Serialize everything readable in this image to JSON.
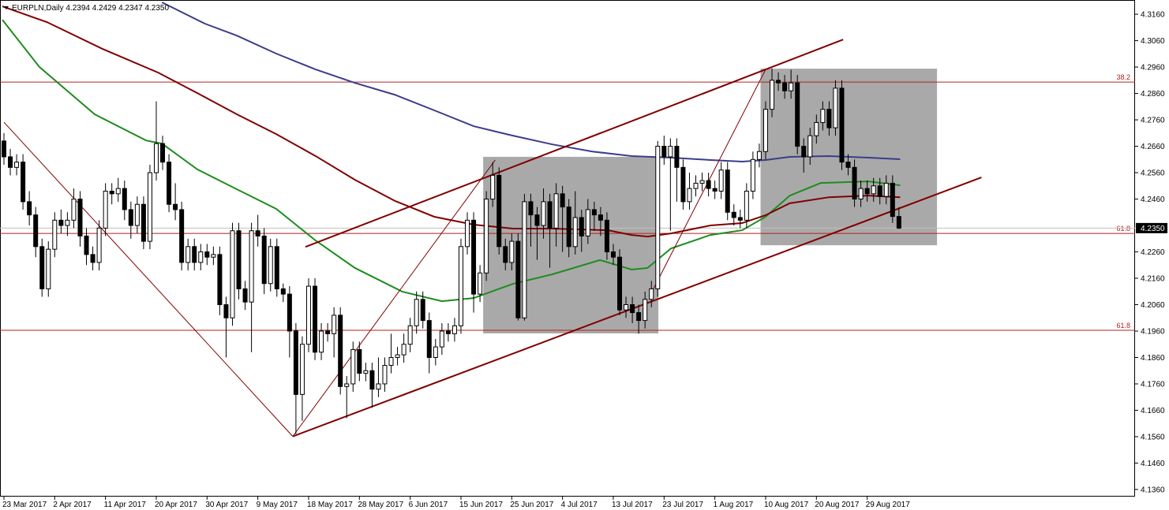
{
  "chart_data": {
    "type": "candlestick",
    "title": "EURPLN,Daily  4.2394 4.2429 4.2347 4.2350",
    "open": [
      4.268,
      4.262,
      4.258,
      4.26,
      4.245,
      4.24,
      4.228,
      4.212,
      4.227,
      4.238,
      4.236,
      4.238,
      4.246,
      4.232,
      4.225,
      4.222,
      4.235,
      4.249,
      4.248,
      4.25,
      4.242,
      4.236,
      4.244,
      4.23,
      4.256,
      4.267,
      4.26,
      4.244,
      4.242,
      4.222,
      4.228,
      4.222,
      4.226,
      4.224,
      4.225,
      4.206,
      4.201,
      4.234,
      4.212,
      4.207,
      4.234,
      4.232,
      4.214,
      4.228,
      4.212,
      4.21,
      4.196,
      4.172,
      4.191,
      4.213,
      4.188,
      4.196,
      4.195,
      4.202,
      4.175,
      4.176,
      4.189,
      4.18,
      4.181,
      4.174,
      4.176,
      4.183,
      4.186,
      4.187,
      4.191,
      4.198,
      4.208,
      4.2,
      4.186,
      4.19,
      4.196,
      4.195,
      4.198,
      4.228,
      4.238,
      4.21,
      4.218,
      4.246,
      4.255,
      4.228,
      4.222,
      4.23,
      4.201,
      4.245,
      4.24,
      4.236,
      4.245,
      4.235,
      4.248,
      4.243,
      4.228,
      4.239,
      4.232,
      4.242,
      4.24,
      4.238,
      4.226,
      4.224,
      4.204,
      4.206,
      4.203,
      4.2,
      4.208,
      4.212,
      4.266,
      4.262,
      4.266,
      4.258,
      4.245,
      4.25,
      4.252,
      4.253,
      4.25,
      4.249,
      4.257,
      4.241,
      4.239,
      4.238,
      4.249,
      4.261,
      4.264,
      4.28,
      4.291,
      4.29,
      4.287,
      4.29,
      4.266,
      4.262,
      4.27,
      4.275,
      4.28,
      4.273,
      4.288,
      4.26,
      4.258,
      4.246,
      4.25,
      4.248,
      4.251,
      4.247,
      4.252,
      4.2394
    ],
    "high": [
      4.271,
      4.265,
      4.263,
      4.263,
      4.249,
      4.243,
      4.231,
      4.23,
      4.241,
      4.242,
      4.241,
      4.25,
      4.249,
      4.235,
      4.228,
      4.238,
      4.252,
      4.252,
      4.254,
      4.253,
      4.245,
      4.247,
      4.247,
      4.259,
      4.283,
      4.27,
      4.263,
      4.252,
      4.245,
      4.231,
      4.231,
      4.229,
      4.229,
      4.228,
      4.228,
      4.209,
      4.237,
      4.237,
      4.215,
      4.237,
      4.24,
      4.235,
      4.231,
      4.231,
      4.214,
      4.213,
      4.199,
      4.194,
      4.216,
      4.216,
      4.199,
      4.199,
      4.205,
      4.205,
      4.179,
      4.192,
      4.192,
      4.184,
      4.184,
      4.186,
      4.186,
      4.195,
      4.19,
      4.195,
      4.201,
      4.211,
      4.211,
      4.203,
      4.193,
      4.199,
      4.199,
      4.201,
      4.231,
      4.241,
      4.241,
      4.221,
      4.249,
      4.26,
      4.258,
      4.231,
      4.233,
      4.233,
      4.248,
      4.248,
      4.243,
      4.25,
      4.248,
      4.252,
      4.251,
      4.246,
      4.249,
      4.242,
      4.246,
      4.245,
      4.243,
      4.241,
      4.229,
      4.227,
      4.209,
      4.209,
      4.206,
      4.211,
      4.215,
      4.268,
      4.27,
      4.269,
      4.269,
      4.261,
      4.256,
      4.255,
      4.256,
      4.256,
      4.253,
      4.26,
      4.26,
      4.244,
      4.242,
      4.252,
      4.264,
      4.267,
      4.283,
      4.2955,
      4.294,
      4.293,
      4.295,
      4.293,
      4.269,
      4.273,
      4.278,
      4.283,
      4.283,
      4.291,
      4.291,
      4.263,
      4.261,
      4.253,
      4.253,
      4.254,
      4.254,
      4.255,
      4.255,
      4.2429
    ],
    "low": [
      4.259,
      4.255,
      4.255,
      4.242,
      4.236,
      4.224,
      4.209,
      4.209,
      4.224,
      4.233,
      4.232,
      4.235,
      4.228,
      4.221,
      4.219,
      4.219,
      4.232,
      4.244,
      4.245,
      4.238,
      4.231,
      4.233,
      4.227,
      4.227,
      4.253,
      4.257,
      4.241,
      4.238,
      4.219,
      4.219,
      4.219,
      4.219,
      4.221,
      4.221,
      4.202,
      4.186,
      4.198,
      4.208,
      4.204,
      4.188,
      4.228,
      4.21,
      4.211,
      4.209,
      4.207,
      4.186,
      4.157,
      4.162,
      4.188,
      4.185,
      4.185,
      4.192,
      4.186,
      4.172,
      4.163,
      4.173,
      4.177,
      4.177,
      4.167,
      4.171,
      4.173,
      4.18,
      4.183,
      4.184,
      4.188,
      4.195,
      4.197,
      4.18,
      4.183,
      4.187,
      4.192,
      4.192,
      4.195,
      4.225,
      4.203,
      4.207,
      4.215,
      4.243,
      4.225,
      4.219,
      4.219,
      4.2,
      4.2,
      4.228,
      4.223,
      4.231,
      4.22,
      4.228,
      4.226,
      4.224,
      4.225,
      4.226,
      4.229,
      4.234,
      4.232,
      4.223,
      4.221,
      4.202,
      4.201,
      4.199,
      4.195,
      4.197,
      4.205,
      4.209,
      4.259,
      4.234,
      4.245,
      4.242,
      4.242,
      4.247,
      4.249,
      4.247,
      4.246,
      4.246,
      4.238,
      4.236,
      4.235,
      4.235,
      4.246,
      4.258,
      4.261,
      4.277,
      4.287,
      4.284,
      4.284,
      4.263,
      4.256,
      4.259,
      4.267,
      4.272,
      4.27,
      4.27,
      4.257,
      4.255,
      4.243,
      4.243,
      4.245,
      4.245,
      4.244,
      4.244,
      4.237,
      4.2347
    ],
    "close": [
      4.262,
      4.258,
      4.26,
      4.245,
      4.24,
      4.228,
      4.212,
      4.227,
      4.238,
      4.236,
      4.238,
      4.246,
      4.232,
      4.225,
      4.222,
      4.235,
      4.249,
      4.248,
      4.25,
      4.242,
      4.236,
      4.244,
      4.23,
      4.256,
      4.267,
      4.26,
      4.244,
      4.242,
      4.222,
      4.228,
      4.222,
      4.226,
      4.224,
      4.225,
      4.206,
      4.201,
      4.234,
      4.212,
      4.207,
      4.234,
      4.232,
      4.214,
      4.228,
      4.212,
      4.21,
      4.196,
      4.172,
      4.191,
      4.213,
      4.188,
      4.196,
      4.195,
      4.202,
      4.175,
      4.176,
      4.189,
      4.18,
      4.181,
      4.174,
      4.176,
      4.183,
      4.186,
      4.187,
      4.191,
      4.198,
      4.208,
      4.2,
      4.186,
      4.19,
      4.196,
      4.195,
      4.198,
      4.228,
      4.238,
      4.21,
      4.218,
      4.246,
      4.255,
      4.228,
      4.222,
      4.23,
      4.201,
      4.245,
      4.24,
      4.236,
      4.245,
      4.235,
      4.248,
      4.243,
      4.228,
      4.239,
      4.232,
      4.242,
      4.24,
      4.238,
      4.226,
      4.224,
      4.204,
      4.206,
      4.203,
      4.2,
      4.208,
      4.212,
      4.266,
      4.262,
      4.266,
      4.258,
      4.245,
      4.25,
      4.252,
      4.253,
      4.25,
      4.249,
      4.257,
      4.241,
      4.239,
      4.238,
      4.249,
      4.261,
      4.264,
      4.28,
      4.291,
      4.29,
      4.287,
      4.29,
      4.266,
      4.262,
      4.27,
      4.275,
      4.28,
      4.273,
      4.288,
      4.26,
      4.258,
      4.246,
      4.25,
      4.248,
      4.251,
      4.247,
      4.252,
      4.2394,
      4.235
    ],
    "bull_color": "#ffffff",
    "bear_color": "#000000",
    "lines": [
      {
        "color": "#1e8c1e",
        "x": [
          -0.25,
          5.6,
          14.3,
          22.4,
          24.9,
          30.5,
          36.7,
          42.9,
          49.1,
          55.3,
          62.8,
          69.0,
          74.0,
          80.2,
          86.4,
          93.9,
          98.9,
          101.4,
          105.1,
          111.3,
          116.3,
          120.0,
          123.8,
          128.7,
          136.2,
          141.2
        ],
        "values": [
          4.3139,
          4.296,
          4.2781,
          4.2682,
          4.267,
          4.2572,
          4.2497,
          4.2423,
          4.2303,
          4.2199,
          4.2109,
          4.2073,
          4.2085,
          4.2139,
          4.2175,
          4.2229,
          4.2193,
          4.2199,
          4.2273,
          4.2324,
          4.2342,
          4.2393,
          4.2473,
          4.2521,
          4.2527,
          4.2512
        ]
      },
      {
        "color": "#800000",
        "x": [
          -0.25,
          6.8,
          15.5,
          24.3,
          30.5,
          36.7,
          42.9,
          49.1,
          55.3,
          61.6,
          67.8,
          74.0,
          80.2,
          86.4,
          95.1,
          98.9,
          101.4,
          105.1,
          111.3,
          116.3,
          120.0,
          123.8,
          130.0,
          136.2,
          141.2
        ],
        "values": [
          4.319,
          4.313,
          4.3029,
          4.2939,
          4.2861,
          4.2781,
          4.2706,
          4.2623,
          4.2533,
          4.2453,
          4.2393,
          4.2363,
          4.2348,
          4.2348,
          4.2342,
          4.2324,
          4.2318,
          4.233,
          4.236,
          4.2369,
          4.2399,
          4.2444,
          4.2467,
          4.2473,
          4.2467
        ]
      },
      {
        "color": "#3c3c8c",
        "x": [
          24.9,
          31.7,
          36.7,
          42.9,
          49.1,
          55.3,
          61.6,
          67.8,
          74.0,
          80.2,
          86.4,
          92.7,
          98.9,
          105.1,
          111.3,
          116.3,
          120.0,
          123.8,
          130.0,
          136.2,
          141.2
        ],
        "values": [
          4.3205,
          4.3124,
          4.3079,
          4.3011,
          4.2951,
          4.29,
          4.2855,
          4.2796,
          4.2736,
          4.27,
          4.2667,
          4.264,
          4.2623,
          4.2617,
          4.2608,
          4.2602,
          4.2608,
          4.262,
          4.2623,
          4.2617,
          4.2611
        ]
      }
    ],
    "trendlines": [
      {
        "color": "#800000",
        "x": [
          47.5,
          132.2
        ],
        "y": [
          4.2279,
          4.3064
        ],
        "width": 2
      },
      {
        "color": "#800000",
        "x": [
          45.5,
          154.0
        ],
        "y": [
          4.1561,
          4.2542
        ],
        "width": 2
      },
      {
        "color": "#800000",
        "x": [
          0,
          45.5
        ],
        "y": [
          4.2751,
          4.1561
        ],
        "width": 1
      },
      {
        "color": "#800000",
        "x": [
          45.5,
          77.4
        ],
        "y": [
          4.1561,
          4.2608
        ],
        "width": 1
      },
      {
        "color": "#800000",
        "x": [
          102.1,
          120.0
        ],
        "y": [
          4.2109,
          4.2951
        ],
        "width": 1
      }
    ],
    "rectangles": [
      {
        "color": "#a9a9a9",
        "x": [
          75.5,
          103.1
        ],
        "y": [
          4.1951,
          4.262
        ]
      },
      {
        "color": "#a9a9a9",
        "x": [
          119.2,
          147.0
        ],
        "y": [
          4.2285,
          4.2954
        ]
      }
    ],
    "levels": [
      {
        "value": 4.2903,
        "label": "38.2",
        "color": "#b22222"
      },
      {
        "value": 4.233,
        "label": "61.8",
        "color": "#b22222"
      },
      {
        "value": 4.1963,
        "label": "61.8",
        "color": "#b22222"
      }
    ],
    "last_price": {
      "value": 4.235,
      "label": "4.2350"
    },
    "xlim": [
      -0.62,
      178.2
    ],
    "ylim": [
      4.1333,
      4.3214
    ],
    "xticks": [
      {
        "value": 0,
        "label": "23 Mar 2017"
      },
      {
        "value": 8,
        "label": "2 Apr 2017"
      },
      {
        "value": 16,
        "label": "11 Apr 2017"
      },
      {
        "value": 24,
        "label": "20 Apr 2017"
      },
      {
        "value": 32,
        "label": "30 Apr 2017"
      },
      {
        "value": 40,
        "label": "9 May 2017"
      },
      {
        "value": 48,
        "label": "18 May 2017"
      },
      {
        "value": 56,
        "label": "28 May 2017"
      },
      {
        "value": 64,
        "label": "6 Jun 2017"
      },
      {
        "value": 72,
        "label": "15 Jun 2017"
      },
      {
        "value": 80,
        "label": "25 Jun 2017"
      },
      {
        "value": 88,
        "label": "4 Jul 2017"
      },
      {
        "value": 96,
        "label": "13 Jul 2017"
      },
      {
        "value": 104,
        "label": "23 Jul 2017"
      },
      {
        "value": 112,
        "label": "1 Aug 2017"
      },
      {
        "value": 120,
        "label": "10 Aug 2017"
      },
      {
        "value": 128,
        "label": "20 Aug 2017"
      },
      {
        "value": 136,
        "label": "29 Aug 2017"
      }
    ],
    "yticks": [
      {
        "value": 4.316,
        "label": "4.3160"
      },
      {
        "value": 4.306,
        "label": "4.3060"
      },
      {
        "value": 4.296,
        "label": "4.2960"
      },
      {
        "value": 4.286,
        "label": "4.2860"
      },
      {
        "value": 4.276,
        "label": "4.2760"
      },
      {
        "value": 4.266,
        "label": "4.2660"
      },
      {
        "value": 4.256,
        "label": "4.2560"
      },
      {
        "value": 4.246,
        "label": "4.2460"
      },
      {
        "value": 4.226,
        "label": "4.2260"
      },
      {
        "value": 4.216,
        "label": "4.2160"
      },
      {
        "value": 4.206,
        "label": "4.2060"
      },
      {
        "value": 4.196,
        "label": "4.1960"
      },
      {
        "value": 4.186,
        "label": "4.1860"
      },
      {
        "value": 4.176,
        "label": "4.1760"
      },
      {
        "value": 4.166,
        "label": "4.1660"
      },
      {
        "value": 4.156,
        "label": "4.1560"
      },
      {
        "value": 4.146,
        "label": "4.1460"
      },
      {
        "value": 4.136,
        "label": "4.1360"
      }
    ]
  }
}
